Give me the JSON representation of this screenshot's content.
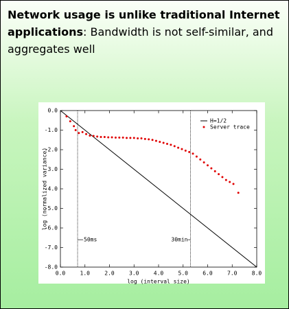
{
  "slide": {
    "heading_bold": "Network usage is unlike traditional Internet applications",
    "heading_rest": ": Bandwidth is not self-similar, and aggregates well"
  },
  "chart_data": {
    "type": "scatter",
    "xlabel": "log (interval size)",
    "ylabel": "log (normalized variance)",
    "xlim": [
      0,
      8
    ],
    "ylim": [
      -8,
      0
    ],
    "xticks": [
      {
        "value": 0,
        "label": "0.0"
      },
      {
        "value": 1,
        "label": "1.0"
      },
      {
        "value": 2,
        "label": "2.0"
      },
      {
        "value": 3,
        "label": "3.0"
      },
      {
        "value": 4,
        "label": "4.0"
      },
      {
        "value": 5,
        "label": "5.0"
      },
      {
        "value": 6,
        "label": "6.0"
      },
      {
        "value": 7,
        "label": "7.0"
      },
      {
        "value": 8,
        "label": "8.0"
      }
    ],
    "yticks": [
      {
        "value": 0,
        "label": "0.0"
      },
      {
        "value": -1,
        "label": "-1.0"
      },
      {
        "value": -2,
        "label": "-2.0"
      },
      {
        "value": -3,
        "label": "-3.0"
      },
      {
        "value": -4,
        "label": "-4.0"
      },
      {
        "value": -5,
        "label": "-5.0"
      },
      {
        "value": -6,
        "label": "-6.0"
      },
      {
        "value": -7,
        "label": "-7.0"
      },
      {
        "value": -8,
        "label": "-8.0"
      }
    ],
    "legend": "upper right",
    "series": [
      {
        "name": "H=1/2",
        "kind": "line",
        "color": "#000000",
        "x": [
          0,
          8
        ],
        "values": [
          0,
          -8
        ]
      },
      {
        "name": "Server trace",
        "kind": "points",
        "color": "#e00000",
        "x": [
          0.25,
          0.4,
          0.55,
          0.62,
          0.75,
          0.9,
          1.05,
          1.2,
          1.35,
          1.5,
          1.65,
          1.8,
          1.95,
          2.1,
          2.25,
          2.4,
          2.55,
          2.7,
          2.85,
          3.0,
          3.15,
          3.3,
          3.45,
          3.6,
          3.75,
          3.9,
          4.05,
          4.2,
          4.35,
          4.5,
          4.65,
          4.8,
          4.95,
          5.1,
          5.25,
          5.4,
          5.55,
          5.7,
          5.85,
          6.0,
          6.15,
          6.3,
          6.45,
          6.6,
          6.75,
          6.9,
          7.05,
          7.25
        ],
        "values": [
          -0.3,
          -0.55,
          -0.8,
          -1.0,
          -1.15,
          -1.1,
          -1.2,
          -1.28,
          -1.3,
          -1.33,
          -1.35,
          -1.35,
          -1.37,
          -1.37,
          -1.38,
          -1.38,
          -1.38,
          -1.4,
          -1.4,
          -1.4,
          -1.42,
          -1.42,
          -1.45,
          -1.47,
          -1.5,
          -1.55,
          -1.6,
          -1.65,
          -1.7,
          -1.75,
          -1.82,
          -1.9,
          -1.97,
          -2.05,
          -2.12,
          -2.2,
          -2.35,
          -2.5,
          -2.65,
          -2.8,
          -2.95,
          -3.1,
          -3.25,
          -3.4,
          -3.55,
          -3.65,
          -3.75,
          -4.2
        ]
      }
    ],
    "reference_lines": [
      {
        "x": 0.7,
        "label": "50ms",
        "label_y": -6.6
      },
      {
        "x": 5.3,
        "label": "30min",
        "label_y": -6.6
      }
    ]
  }
}
